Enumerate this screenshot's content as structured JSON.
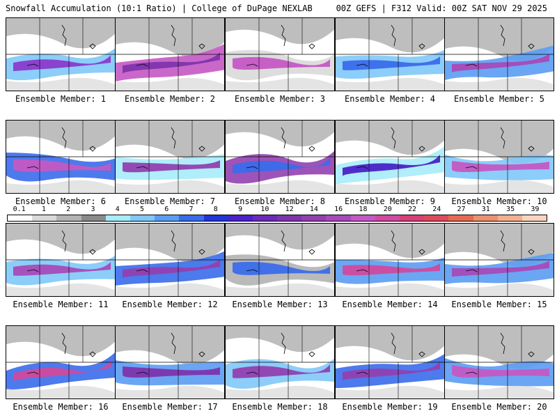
{
  "header": {
    "left_title": "Snowfall Accumulation (10:1 Ratio) | College of DuPage NEXLAB",
    "right_title": "00Z GEFS | F312 Valid: 00Z SAT NOV 29 2025"
  },
  "colorbar": {
    "ticks": [
      "0.1",
      "1",
      "2",
      "3",
      "4",
      "5",
      "6",
      "7",
      "8",
      "9",
      "10",
      "12",
      "14",
      "16",
      "18",
      "20",
      "22",
      "24",
      "27",
      "31",
      "35",
      "39"
    ],
    "colors": [
      "#ffffff",
      "#d9d9d9",
      "#b3b3b3",
      "#8a8a8a",
      "#a6ecfa",
      "#7fc8f8",
      "#5a9cf2",
      "#3a6bea",
      "#2235d8",
      "#4a22c8",
      "#6a2cb8",
      "#7e34ac",
      "#9240b0",
      "#a84ab8",
      "#c458c4",
      "#d04a9e",
      "#d8407a",
      "#de4a5c",
      "#e46a52",
      "#ec9070",
      "#f2b090",
      "#f8d4bc"
    ]
  },
  "members": [
    {
      "label": "Ensemble Member: 1",
      "band": "#7fc8f8",
      "core": "#8a3acc"
    },
    {
      "label": "Ensemble Member: 2",
      "band": "#c458c4",
      "core": "#7e34ac"
    },
    {
      "label": "Ensemble Member: 3",
      "band": "#d9d9d9",
      "core": "#c458c4"
    },
    {
      "label": "Ensemble Member: 4",
      "band": "#7fc8f8",
      "core": "#3a6bea"
    },
    {
      "label": "Ensemble Member: 5",
      "band": "#5a9cf2",
      "core": "#a84ab8"
    },
    {
      "label": "Ensemble Member: 6",
      "band": "#3a6bea",
      "core": "#c458c4"
    },
    {
      "label": "Ensemble Member: 7",
      "band": "#a6ecfa",
      "core": "#9240b0"
    },
    {
      "label": "Ensemble Member: 8",
      "band": "#9240b0",
      "core": "#3a6bea"
    },
    {
      "label": "Ensemble Member: 9",
      "band": "#a6ecfa",
      "core": "#4a22c8"
    },
    {
      "label": "Ensemble Member: 10",
      "band": "#7fc8f8",
      "core": "#c458c4"
    },
    {
      "label": "Ensemble Member: 11",
      "band": "#7fc8f8",
      "core": "#a84ab8"
    },
    {
      "label": "Ensemble Member: 12",
      "band": "#3a6bea",
      "core": "#9240b0"
    },
    {
      "label": "Ensemble Member: 13",
      "band": "#b3b3b3",
      "core": "#3a6bea"
    },
    {
      "label": "Ensemble Member: 14",
      "band": "#5a9cf2",
      "core": "#d04a9e"
    },
    {
      "label": "Ensemble Member: 15",
      "band": "#5a9cf2",
      "core": "#a84ab8"
    },
    {
      "label": "Ensemble Member: 16",
      "band": "#3a6bea",
      "core": "#d04a9e"
    },
    {
      "label": "Ensemble Member: 17",
      "band": "#5a9cf2",
      "core": "#7e34ac"
    },
    {
      "label": "Ensemble Member: 18",
      "band": "#7fc8f8",
      "core": "#9240b0"
    },
    {
      "label": "Ensemble Member: 19",
      "band": "#3a6bea",
      "core": "#9240b0"
    },
    {
      "label": "Ensemble Member: 20",
      "band": "#5a9cf2",
      "core": "#c458c4"
    }
  ]
}
